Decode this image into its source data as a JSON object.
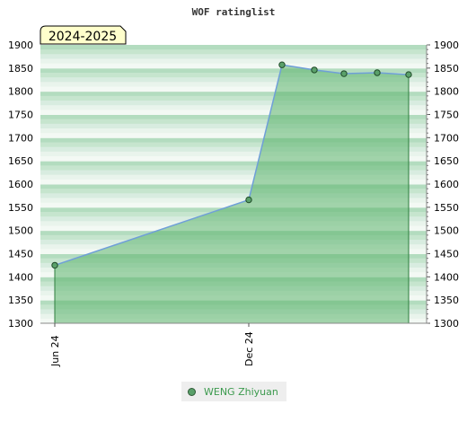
{
  "chart_data": {
    "type": "area",
    "title": "WOF ratinglist",
    "annotation": "2024-2025",
    "x_tick_labels": [
      "Jun 24",
      "Dec 24"
    ],
    "y_range": [
      1300,
      1900
    ],
    "y_ticks": [
      1300,
      1350,
      1400,
      1450,
      1500,
      1550,
      1600,
      1650,
      1700,
      1750,
      1800,
      1850,
      1900
    ],
    "series": [
      {
        "name": "WENG Zhiyuan",
        "points": [
          {
            "x": "2024-06",
            "y": 1425
          },
          {
            "x": "2024-12",
            "y": 1566
          },
          {
            "x": "2025-01",
            "y": 1857
          },
          {
            "x": "2025-02",
            "y": 1846
          },
          {
            "x": "2025-03",
            "y": 1838
          },
          {
            "x": "2025-04",
            "y": 1840
          },
          {
            "x": "2025-05",
            "y": 1836
          }
        ]
      }
    ],
    "legend_position": "bottom",
    "grid": true,
    "colors": {
      "area": "#5db56e",
      "line": "#6f9fd8",
      "marker": "#5aa06a",
      "band_dark": "#b3dcbf",
      "band_light": "#f3f9f4"
    }
  }
}
